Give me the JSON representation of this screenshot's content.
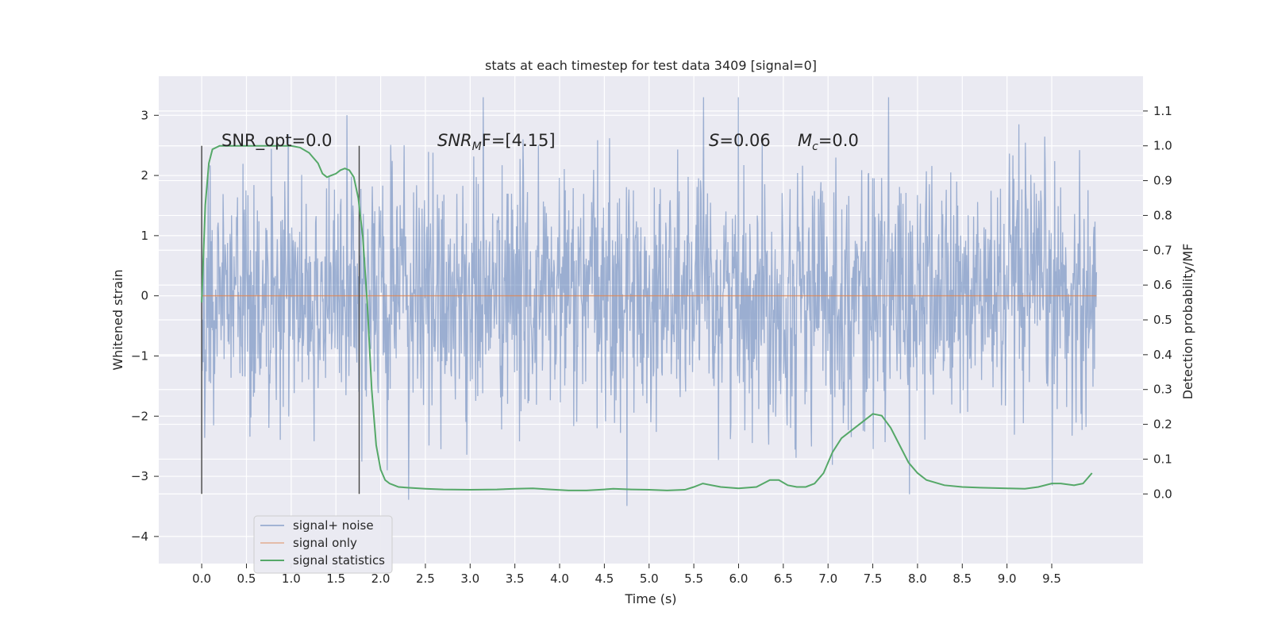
{
  "chart_data": {
    "type": "line",
    "title": "stats at each timestep for test data 3409 [signal=0]",
    "xlabel": "Time (s)",
    "ylabel": "Whitened strain",
    "y2label": "Detection probability/MF",
    "xlim": [
      -0.48,
      10.52
    ],
    "ylim": [
      -4.45,
      3.65
    ],
    "y2lim": [
      -0.2,
      1.2
    ],
    "x_ticks": [
      "0.0",
      "0.5",
      "1.0",
      "1.5",
      "2.0",
      "2.5",
      "3.0",
      "3.5",
      "4.0",
      "4.5",
      "5.0",
      "5.5",
      "6.0",
      "6.5",
      "7.0",
      "7.5",
      "8.0",
      "8.5",
      "9.0",
      "9.5"
    ],
    "y_ticks": [
      "−4",
      "−3",
      "−2",
      "−1",
      "0",
      "1",
      "2",
      "3"
    ],
    "y2_ticks": [
      "0.0",
      "0.1",
      "0.2",
      "0.3",
      "0.4",
      "0.5",
      "0.6",
      "0.7",
      "0.8",
      "0.9",
      "1.0",
      "1.1"
    ],
    "grid": true,
    "legend_position": "lower-left",
    "annotations": {
      "snr_opt": "SNR_opt=0.0",
      "snr_mf_main": "SNR",
      "snr_mf_sub": "M",
      "snr_mf_rest": "F=[4.15]",
      "s_var": "S",
      "s_value": "=0.06",
      "mc_var": "M",
      "mc_sub": "c",
      "mc_value": "=0.0"
    },
    "vertical_markers": [
      0.0,
      1.76
    ],
    "series": [
      {
        "name": "signal+ noise",
        "color": "#4c72b0",
        "axis": "left",
        "x_range": [
          0.0,
          10.0
        ],
        "samples": 1800,
        "amplitude": [
          -3.75,
          3.3
        ]
      },
      {
        "name": "signal only",
        "color": "#dd8452",
        "axis": "left",
        "x": [
          0.0,
          10.0
        ],
        "y": [
          0.0,
          0.0
        ]
      },
      {
        "name": "signal statistics",
        "color": "#55a868",
        "axis": "right",
        "x": [
          0.0,
          0.04,
          0.08,
          0.12,
          0.2,
          0.3,
          0.4,
          0.5,
          0.6,
          0.7,
          0.8,
          0.9,
          1.0,
          1.1,
          1.2,
          1.3,
          1.35,
          1.4,
          1.45,
          1.5,
          1.55,
          1.6,
          1.65,
          1.7,
          1.75,
          1.8,
          1.85,
          1.9,
          1.95,
          2.0,
          2.05,
          2.1,
          2.15,
          2.2,
          2.3,
          2.5,
          2.7,
          3.0,
          3.3,
          3.5,
          3.7,
          3.9,
          4.1,
          4.3,
          4.5,
          4.6,
          4.8,
          5.0,
          5.2,
          5.4,
          5.5,
          5.6,
          5.8,
          6.0,
          6.2,
          6.35,
          6.45,
          6.55,
          6.65,
          6.75,
          6.85,
          6.95,
          7.05,
          7.15,
          7.3,
          7.4,
          7.5,
          7.6,
          7.7,
          7.8,
          7.9,
          8.0,
          8.1,
          8.3,
          8.5,
          8.7,
          9.0,
          9.2,
          9.35,
          9.5,
          9.6,
          9.75,
          9.85,
          9.95
        ],
        "y": [
          0.55,
          0.83,
          0.95,
          0.99,
          1.0,
          1.0,
          1.0,
          1.0,
          1.0,
          1.0,
          1.0,
          1.0,
          1.0,
          0.995,
          0.98,
          0.95,
          0.92,
          0.91,
          0.915,
          0.92,
          0.93,
          0.935,
          0.93,
          0.91,
          0.85,
          0.74,
          0.55,
          0.3,
          0.14,
          0.07,
          0.04,
          0.03,
          0.025,
          0.02,
          0.018,
          0.015,
          0.013,
          0.012,
          0.013,
          0.015,
          0.016,
          0.013,
          0.01,
          0.01,
          0.013,
          0.015,
          0.013,
          0.012,
          0.01,
          0.012,
          0.02,
          0.03,
          0.02,
          0.016,
          0.02,
          0.04,
          0.04,
          0.025,
          0.02,
          0.02,
          0.03,
          0.06,
          0.12,
          0.16,
          0.19,
          0.21,
          0.23,
          0.225,
          0.19,
          0.14,
          0.09,
          0.06,
          0.04,
          0.025,
          0.02,
          0.018,
          0.016,
          0.015,
          0.02,
          0.03,
          0.03,
          0.025,
          0.03,
          0.06
        ]
      }
    ]
  }
}
